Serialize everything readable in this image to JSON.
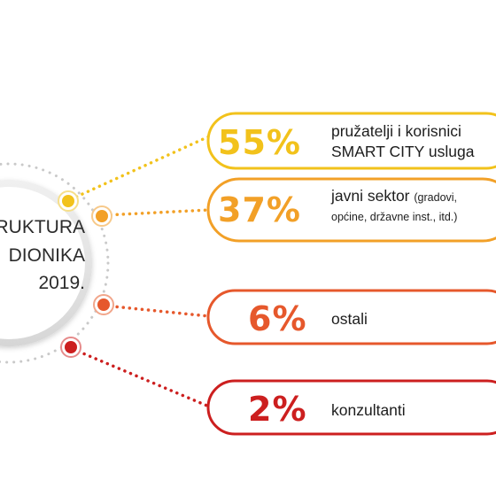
{
  "circle": {
    "line1": "RUKTURA",
    "line2": "DIONIKA",
    "line3": "2019."
  },
  "items": [
    {
      "percent": "55%",
      "label_line1": "pružatelji i korisnici",
      "label_line2": "SMART CITY usluga",
      "color": "#f2c21b"
    },
    {
      "percent": "37%",
      "label_main": "javni sektor",
      "label_small_a": "(gradovi,",
      "label_small_b": "općine, državne inst., itd.)",
      "color": "#f2a027"
    },
    {
      "percent": "6%",
      "label": "ostali",
      "color": "#e6582c"
    },
    {
      "percent": "2%",
      "label": "konzultanti",
      "color": "#cc1f1f"
    }
  ]
}
